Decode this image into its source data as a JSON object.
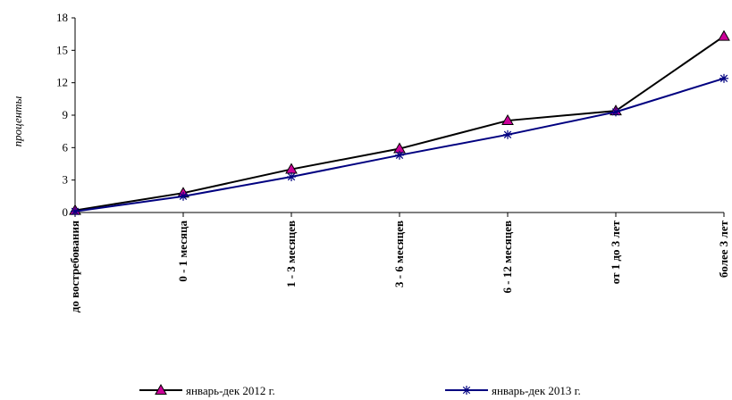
{
  "chart_data": {
    "type": "line",
    "title": "",
    "xlabel": "",
    "ylabel": "проценты",
    "ylim": [
      0,
      18
    ],
    "yticks": [
      0,
      3,
      6,
      9,
      12,
      15,
      18
    ],
    "grid": false,
    "legend_position": "bottom",
    "categories": [
      "до востребования",
      "0 - 1 месяца",
      "1 - 3 месяцев",
      "3 - 6 месяцев",
      "6 - 12 месяцев",
      "от 1 до 3 лет",
      "более 3 лет"
    ],
    "series": [
      {
        "name": "январь-дек 2012 г.",
        "values": [
          0.2,
          1.8,
          4.0,
          5.9,
          8.5,
          9.4,
          16.3
        ],
        "line_color": "#000000",
        "marker": "triangle",
        "marker_color": "#cc0099"
      },
      {
        "name": "январь-дек 2013 г.",
        "values": [
          0.1,
          1.5,
          3.3,
          5.3,
          7.2,
          9.3,
          12.4
        ],
        "line_color": "#000080",
        "marker": "asterisk",
        "marker_color": "#000080"
      }
    ]
  }
}
